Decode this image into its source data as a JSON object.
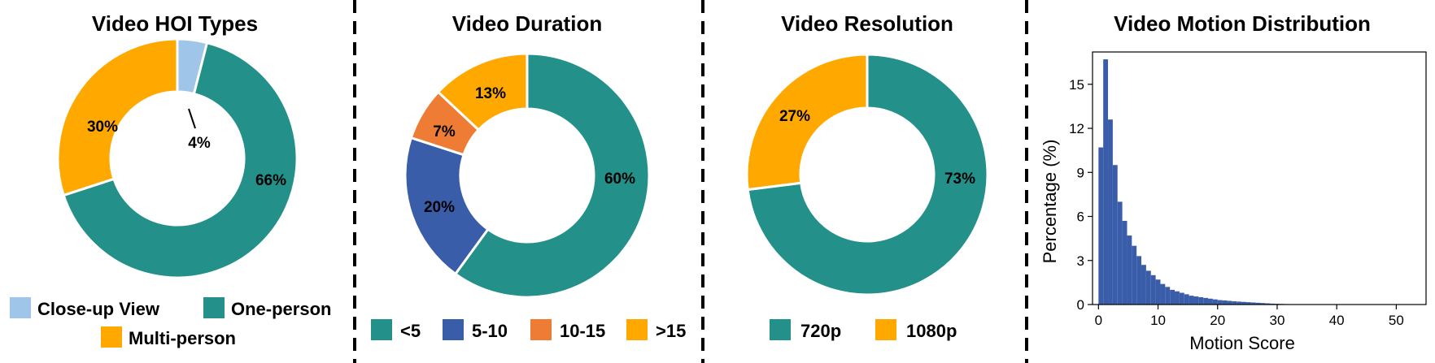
{
  "chart_data": [
    {
      "type": "pie",
      "title": "Video HOI Types",
      "slices": [
        {
          "label": "Close-up View",
          "value": 4,
          "text": "4%",
          "color": "#9fc5e8"
        },
        {
          "label": "One-person",
          "value": 66,
          "text": "66%",
          "color": "#239089"
        },
        {
          "label": "Multi-person",
          "value": 30,
          "text": "30%",
          "color": "#ffa800"
        }
      ],
      "legend": "bottom"
    },
    {
      "type": "pie",
      "title": "Video Duration",
      "slices": [
        {
          "label": "<5",
          "value": 60,
          "text": "60%",
          "color": "#239089"
        },
        {
          "label": "5-10",
          "value": 20,
          "text": "20%",
          "color": "#3a5daa"
        },
        {
          "label": "10-15",
          "value": 7,
          "text": "7%",
          "color": "#ef7c34"
        },
        {
          "label": ">15",
          "value": 13,
          "text": "13%",
          "color": "#ffa800"
        }
      ],
      "legend": "bottom"
    },
    {
      "type": "pie",
      "title": "Video Resolution",
      "slices": [
        {
          "label": "720p",
          "value": 73,
          "text": "73%",
          "color": "#239089"
        },
        {
          "label": "1080p",
          "value": 27,
          "text": "27%",
          "color": "#ffa800"
        }
      ],
      "legend": "bottom"
    },
    {
      "type": "bar",
      "subtype": "histogram",
      "title": "Video Motion Distribution",
      "xlabel": "Motion Score",
      "ylabel": "Percentage (%)",
      "xlim": [
        -1,
        55
      ],
      "ylim": [
        0,
        17.2
      ],
      "xticks": [
        "0",
        "10",
        "20",
        "30",
        "40",
        "50"
      ],
      "yticks": [
        "0",
        "3",
        "6",
        "9",
        "12",
        "15"
      ],
      "bin_width": 0.8,
      "bin_start": 0,
      "values": [
        10.7,
        16.7,
        12.6,
        9.5,
        7.0,
        5.7,
        4.7,
        4.0,
        3.3,
        2.7,
        2.3,
        2.0,
        1.7,
        1.4,
        1.2,
        1.0,
        0.9,
        0.8,
        0.7,
        0.6,
        0.55,
        0.5,
        0.45,
        0.4,
        0.35,
        0.3,
        0.28,
        0.25,
        0.22,
        0.2,
        0.18,
        0.16,
        0.14,
        0.12,
        0.1,
        0.08,
        0.06,
        0.05,
        0.04,
        0.03
      ],
      "color": "#3a5daa",
      "grid": false
    }
  ],
  "colors": {
    "divider": "#000000",
    "wedge_border": "#ffffff"
  }
}
